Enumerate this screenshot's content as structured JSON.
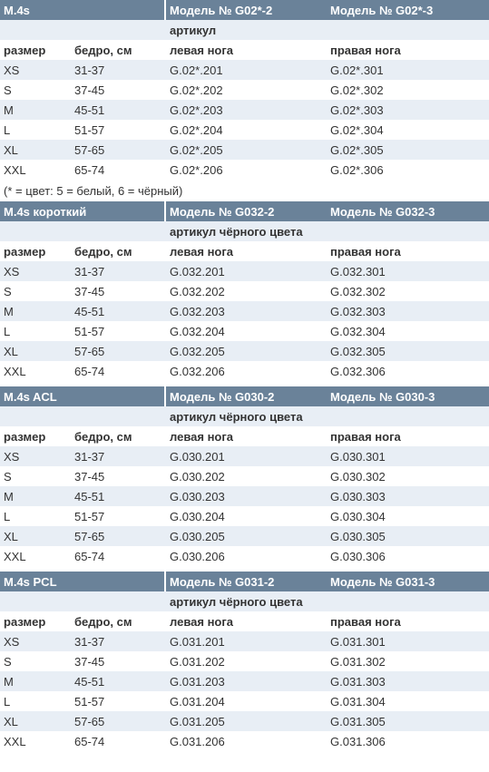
{
  "blocks": [
    {
      "title": "M.4s",
      "model_left": "Модель № G02*-2",
      "model_right": "Модель № G02*-3",
      "article_label": "артикул",
      "col_size": "размер",
      "col_thigh": "бедро, см",
      "col_left": "левая нога",
      "col_right": "правая нога",
      "rows": [
        {
          "size": "XS",
          "thigh": "31-37",
          "left": "G.02*.201",
          "right": "G.02*.301"
        },
        {
          "size": "S",
          "thigh": "37-45",
          "left": "G.02*.202",
          "right": "G.02*.302"
        },
        {
          "size": "M",
          "thigh": "45-51",
          "left": "G.02*.203",
          "right": "G.02*.303"
        },
        {
          "size": "L",
          "thigh": "51-57",
          "left": "G.02*.204",
          "right": "G.02*.304"
        },
        {
          "size": "XL",
          "thigh": "57-65",
          "left": "G.02*.205",
          "right": "G.02*.305"
        },
        {
          "size": "XXL",
          "thigh": "65-74",
          "left": "G.02*.206",
          "right": "G.02*.306"
        }
      ],
      "note": "(* = цвет: 5 = белый, 6 = чёрный)"
    },
    {
      "title": "M.4s короткий",
      "model_left": "Модель № G032-2",
      "model_right": "Модель № G032-3",
      "article_label": "артикул чёрного цвета",
      "col_size": "размер",
      "col_thigh": "бедро, см",
      "col_left": "левая нога",
      "col_right": "правая нога",
      "rows": [
        {
          "size": "XS",
          "thigh": "31-37",
          "left": "G.032.201",
          "right": "G.032.301"
        },
        {
          "size": "S",
          "thigh": "37-45",
          "left": "G.032.202",
          "right": "G.032.302"
        },
        {
          "size": "M",
          "thigh": "45-51",
          "left": "G.032.203",
          "right": "G.032.303"
        },
        {
          "size": "L",
          "thigh": "51-57",
          "left": "G.032.204",
          "right": "G.032.304"
        },
        {
          "size": "XL",
          "thigh": "57-65",
          "left": "G.032.205",
          "right": "G.032.305"
        },
        {
          "size": "XXL",
          "thigh": "65-74",
          "left": "G.032.206",
          "right": "G.032.306"
        }
      ]
    },
    {
      "title": "M.4s ACL",
      "model_left": "Модель № G030-2",
      "model_right": "Модель № G030-3",
      "article_label": "артикул чёрного цвета",
      "col_size": "размер",
      "col_thigh": "бедро, см",
      "col_left": "левая нога",
      "col_right": "правая нога",
      "rows": [
        {
          "size": "XS",
          "thigh": "31-37",
          "left": "G.030.201",
          "right": "G.030.301"
        },
        {
          "size": "S",
          "thigh": "37-45",
          "left": "G.030.202",
          "right": "G.030.302"
        },
        {
          "size": "M",
          "thigh": "45-51",
          "left": "G.030.203",
          "right": "G.030.303"
        },
        {
          "size": "L",
          "thigh": "51-57",
          "left": "G.030.204",
          "right": "G.030.304"
        },
        {
          "size": "XL",
          "thigh": "57-65",
          "left": "G.030.205",
          "right": "G.030.305"
        },
        {
          "size": "XXL",
          "thigh": "65-74",
          "left": "G.030.206",
          "right": "G.030.306"
        }
      ]
    },
    {
      "title": "M.4s PCL",
      "model_left": "Модель № G031-2",
      "model_right": "Модель № G031-3",
      "article_label": "артикул чёрного цвета",
      "col_size": "размер",
      "col_thigh": "бедро, см",
      "col_left": "левая нога",
      "col_right": "правая нога",
      "rows": [
        {
          "size": "XS",
          "thigh": "31-37",
          "left": "G.031.201",
          "right": "G.031.301"
        },
        {
          "size": "S",
          "thigh": "37-45",
          "left": "G.031.202",
          "right": "G.031.302"
        },
        {
          "size": "M",
          "thigh": "45-51",
          "left": "G.031.203",
          "right": "G.031.303"
        },
        {
          "size": "L",
          "thigh": "51-57",
          "left": "G.031.204",
          "right": "G.031.304"
        },
        {
          "size": "XL",
          "thigh": "57-65",
          "left": "G.031.205",
          "right": "G.031.305"
        },
        {
          "size": "XXL",
          "thigh": "65-74",
          "left": "G.031.206",
          "right": "G.031.306"
        }
      ]
    }
  ],
  "colors": {
    "header_bg": "#6a8299",
    "row_shade": "#e8eef5",
    "text": "#333333"
  }
}
